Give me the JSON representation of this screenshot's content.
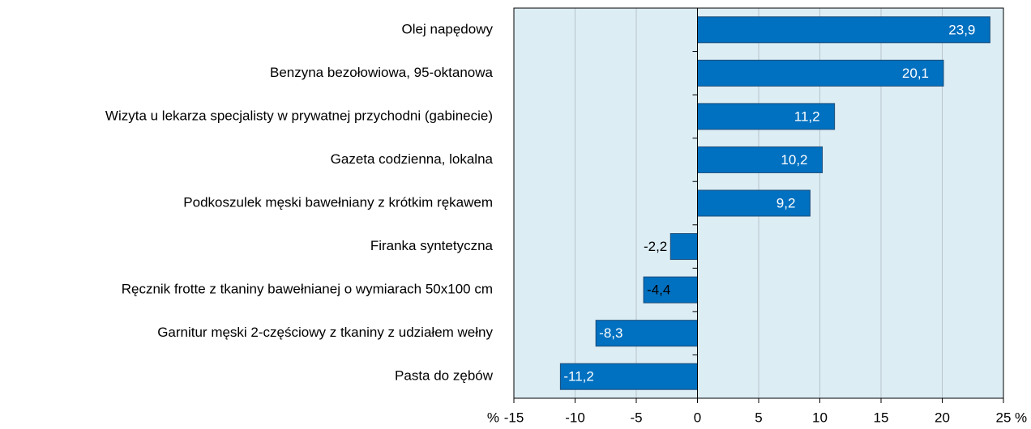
{
  "chart_data": {
    "type": "bar",
    "orientation": "horizontal",
    "categories": [
      "Olej napędowy",
      "Benzyna bezołowiowa, 95-oktanowa",
      "Wizyta u lekarza specjalisty w prywatnej przychodni (gabinecie)",
      "Gazeta codzienna, lokalna",
      "Podkoszulek męski bawełniany z krótkim rękawem",
      "Firanka syntetyczna",
      "Ręcznik frotte z tkaniny bawełnianej o wymiarach 50x100 cm",
      "Garnitur męski 2-częściowy z tkaniny z udziałem wełny",
      "Pasta do zębów"
    ],
    "values": [
      23.9,
      20.1,
      11.2,
      10.2,
      9.2,
      -2.2,
      -4.4,
      -8.3,
      -11.2
    ],
    "value_labels": [
      "23,9",
      "20,1",
      "11,2",
      "10,2",
      "9,2",
      "-2,2",
      "-4,4",
      "-8,3",
      "-11,2"
    ],
    "color": "#0070c0",
    "xlim": [
      -15,
      25
    ],
    "xticks": [
      -15,
      -10,
      -5,
      0,
      5,
      10,
      15,
      20,
      25
    ],
    "unit": "%",
    "grid": true
  }
}
